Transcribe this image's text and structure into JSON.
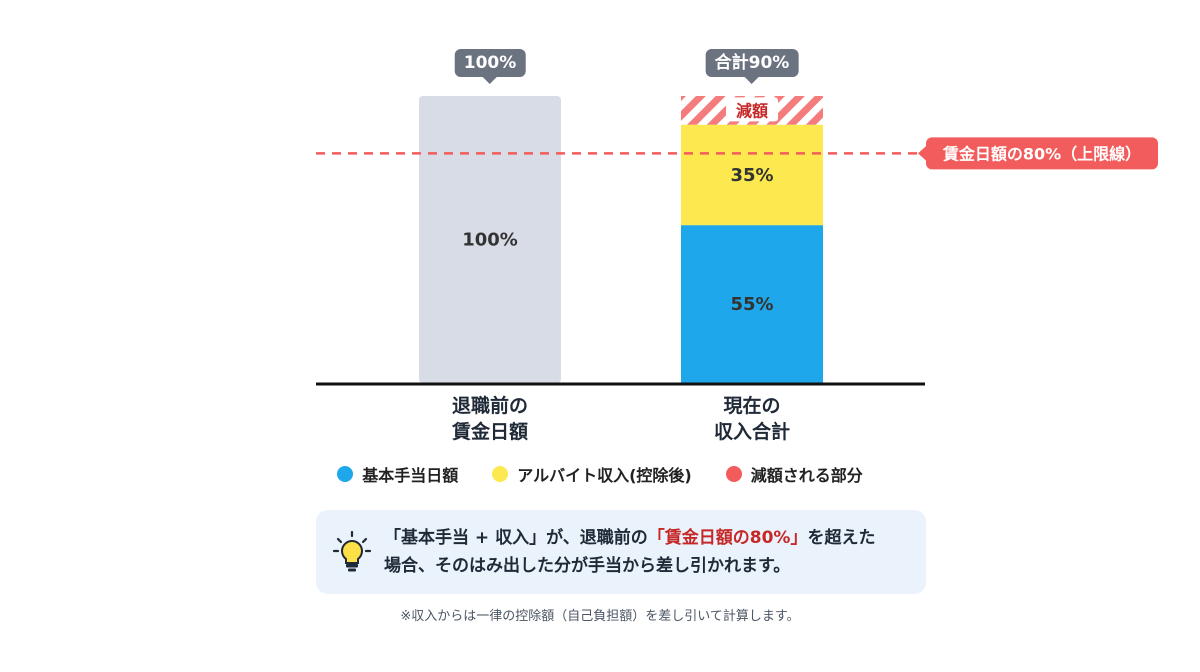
{
  "chart_data": {
    "type": "bar",
    "stacked": true,
    "categories": [
      "退職前の\n賃金日額",
      "現在の\n収入合計"
    ],
    "ylim": [
      0,
      100
    ],
    "grid": false,
    "series": [
      {
        "name": "基本手当日額",
        "color": "#1ea7ea",
        "values": [
          null,
          55
        ],
        "labels": [
          "",
          "55%"
        ]
      },
      {
        "name": "アルバイト収入(控除後)",
        "color": "#fbe94f",
        "values": [
          null,
          35
        ],
        "labels": [
          "",
          "35%"
        ]
      },
      {
        "name": "減額される部分",
        "color": "#f25c5c",
        "values": [
          null,
          10
        ],
        "labels": [
          "",
          "減額"
        ]
      }
    ],
    "reference_bar": {
      "category": "退職前の\n賃金日額",
      "value": 100,
      "label": "100%",
      "color": "#d8dce6"
    },
    "totals": [
      {
        "category": "退職前の\n賃金日額",
        "label": "100%"
      },
      {
        "category": "現在の\n収入合計",
        "label": "合計90%"
      }
    ],
    "reference_line": {
      "value": 80,
      "label": "賃金日額の80%（上限線）",
      "color": "#f25c5c"
    },
    "legend_position": "bottom"
  },
  "categories_display": [
    {
      "line1": "退職前の",
      "line2": "賃金日額"
    },
    {
      "line1": "現在の",
      "line2": "収入合計"
    }
  ],
  "legend": [
    {
      "label": "基本手当日額",
      "color": "#1ea7ea"
    },
    {
      "label": "アルバイト収入(控除後)",
      "color": "#fbe94f"
    },
    {
      "label": "減額される部分",
      "color": "#f25c5c"
    }
  ],
  "note": {
    "icon": "lightbulb-icon",
    "part1": "「基本手当 + 収入」が、退職前の",
    "highlight": "「賃金日額の80%」",
    "part2": "を超えた",
    "part3": "場合、そのはみ出した分が手当から差し引かれます。"
  },
  "footnote": "※収入からは一律の控除額（自己負担額）を差し引いて計算します。"
}
